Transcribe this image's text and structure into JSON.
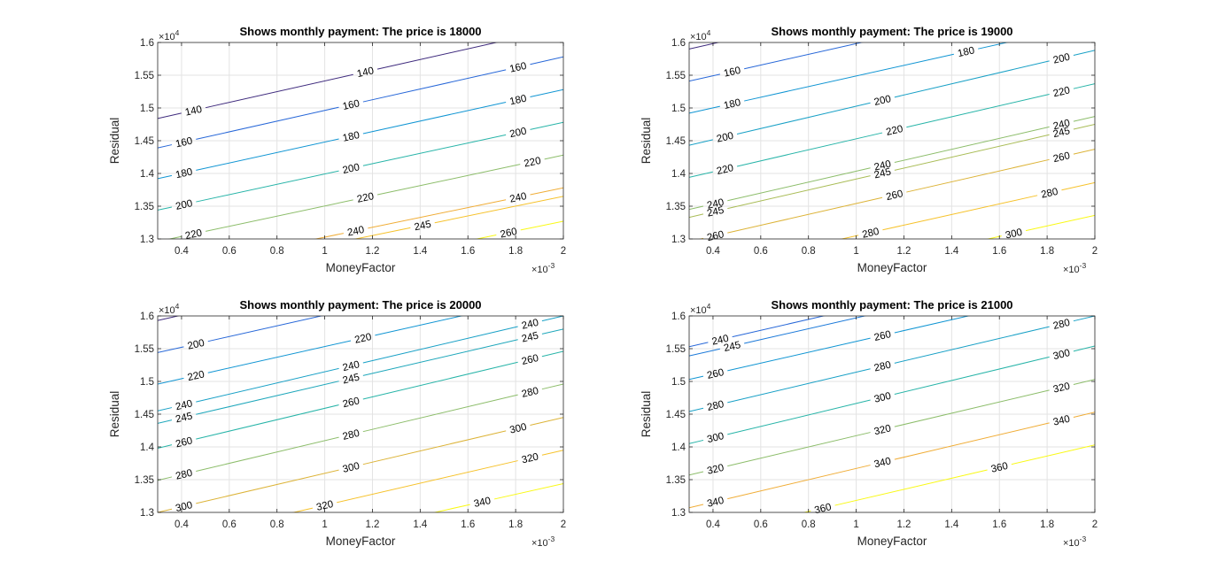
{
  "figure": {
    "type": "contour",
    "background": "#ffffff"
  },
  "chart_data": [
    {
      "type": "contour",
      "title": "Shows monthly payment: The price is 18000",
      "xlabel": "MoneyFactor",
      "ylabel": "Residual",
      "x_multiplier": "×10",
      "x_exponent": "-3",
      "y_multiplier": "×10",
      "y_exponent": "4",
      "xlim": [
        0.3,
        2.0
      ],
      "ylim": [
        1.3,
        1.6
      ],
      "xticks": [
        "0.4",
        "0.6",
        "0.8",
        "1",
        "1.2",
        "1.4",
        "1.6",
        "1.8",
        "2"
      ],
      "xtick_values": [
        0.4,
        0.6,
        0.8,
        1.0,
        1.2,
        1.4,
        1.6,
        1.8,
        2.0
      ],
      "yticks": [
        "1.3",
        "1.35",
        "1.4",
        "1.45",
        "1.5",
        "1.55",
        "1.6"
      ],
      "ytick_values": [
        1.3,
        1.35,
        1.4,
        1.45,
        1.5,
        1.55,
        1.6
      ],
      "grid": true,
      "levels": [
        {
          "value": 140,
          "label": "140",
          "color": "#3e2a7d",
          "y_at_xmin": 1.484,
          "y_at_xmax": 1.623,
          "label_x": [
            0.45,
            1.17
          ]
        },
        {
          "value": 160,
          "label": "160",
          "color": "#2767d8",
          "y_at_xmin": 1.439,
          "y_at_xmax": 1.578,
          "label_x": [
            0.41,
            1.11,
            1.81
          ]
        },
        {
          "value": 180,
          "label": "180",
          "color": "#1095d3",
          "y_at_xmin": 1.392,
          "y_at_xmax": 1.528,
          "label_x": [
            0.41,
            1.11,
            1.81
          ]
        },
        {
          "value": 200,
          "label": "200",
          "color": "#27b4a8",
          "y_at_xmin": 1.344,
          "y_at_xmax": 1.478,
          "label_x": [
            0.41,
            1.11,
            1.81
          ]
        },
        {
          "value": 220,
          "label": "220",
          "color": "#8cbd6a",
          "y_at_xmin": 1.296,
          "y_at_xmax": 1.428,
          "label_x": [
            0.45,
            1.17,
            1.87
          ]
        },
        {
          "value": 240,
          "label": "240",
          "color": "#f0ad37",
          "y_at_xmin": 1.25,
          "y_at_xmax": 1.378,
          "label_x": [
            1.13,
            1.81
          ]
        },
        {
          "value": 245,
          "label": "245",
          "color": "#f6c22b",
          "y_at_xmin": 1.238,
          "y_at_xmax": 1.365,
          "label_x": [
            1.41
          ]
        },
        {
          "value": 260,
          "label": "260",
          "color": "#f9f914",
          "y_at_xmin": 1.2,
          "y_at_xmax": 1.327,
          "label_x": [
            1.77
          ]
        }
      ]
    },
    {
      "type": "contour",
      "title": "Shows monthly payment: The price is 19000",
      "xlabel": "MoneyFactor",
      "ylabel": "Residual",
      "x_multiplier": "×10",
      "x_exponent": "-3",
      "y_multiplier": "×10",
      "y_exponent": "4",
      "xlim": [
        0.3,
        2.0
      ],
      "ylim": [
        1.3,
        1.6
      ],
      "xticks": [
        "0.4",
        "0.6",
        "0.8",
        "1",
        "1.2",
        "1.4",
        "1.6",
        "1.8",
        "2"
      ],
      "xtick_values": [
        0.4,
        0.6,
        0.8,
        1.0,
        1.2,
        1.4,
        1.6,
        1.8,
        2.0
      ],
      "yticks": [
        "1.3",
        "1.35",
        "1.4",
        "1.45",
        "1.5",
        "1.55",
        "1.6"
      ],
      "ytick_values": [
        1.3,
        1.35,
        1.4,
        1.45,
        1.5,
        1.55,
        1.6
      ],
      "grid": true,
      "levels": [
        {
          "value": 140,
          "label": "140",
          "color": "#3e2a7d",
          "y_at_xmin": 1.59,
          "y_at_xmax": 1.73,
          "label_x": []
        },
        {
          "value": 160,
          "label": "160",
          "color": "#2767d8",
          "y_at_xmin": 1.541,
          "y_at_xmax": 1.68,
          "label_x": [
            0.48
          ]
        },
        {
          "value": 180,
          "label": "180",
          "color": "#1095d3",
          "y_at_xmin": 1.492,
          "y_at_xmax": 1.63,
          "label_x": [
            0.48,
            1.46
          ]
        },
        {
          "value": 200,
          "label": "200",
          "color": "#18a0c6",
          "y_at_xmin": 1.443,
          "y_at_xmax": 1.588,
          "label_x": [
            0.45,
            1.11,
            1.86
          ]
        },
        {
          "value": 220,
          "label": "220",
          "color": "#27b4a8",
          "y_at_xmin": 1.394,
          "y_at_xmax": 1.537,
          "label_x": [
            0.45,
            1.16,
            1.86
          ]
        },
        {
          "value": 240,
          "label": "240",
          "color": "#8cbd6a",
          "y_at_xmin": 1.345,
          "y_at_xmax": 1.487,
          "label_x": [
            0.41,
            1.11,
            1.86
          ]
        },
        {
          "value": 245,
          "label": "245",
          "color": "#a9bc56",
          "y_at_xmin": 1.333,
          "y_at_xmax": 1.475,
          "label_x": [
            0.41,
            1.11,
            1.86
          ]
        },
        {
          "value": 260,
          "label": "260",
          "color": "#dcb337",
          "y_at_xmin": 1.296,
          "y_at_xmax": 1.437,
          "label_x": [
            0.41,
            1.16,
            1.86
          ]
        },
        {
          "value": 280,
          "label": "280",
          "color": "#f6c22b",
          "y_at_xmin": 1.248,
          "y_at_xmax": 1.386,
          "label_x": [
            1.06,
            1.81
          ]
        },
        {
          "value": 300,
          "label": "300",
          "color": "#f9f914",
          "y_at_xmin": 1.199,
          "y_at_xmax": 1.336,
          "label_x": [
            1.66
          ]
        }
      ]
    },
    {
      "type": "contour",
      "title": "Shows monthly payment: The price is 20000",
      "xlabel": "MoneyFactor",
      "ylabel": "Residual",
      "x_multiplier": "×10",
      "x_exponent": "-3",
      "y_multiplier": "×10",
      "y_exponent": "4",
      "xlim": [
        0.3,
        2.0
      ],
      "ylim": [
        1.3,
        1.6
      ],
      "xticks": [
        "0.4",
        "0.6",
        "0.8",
        "1",
        "1.2",
        "1.4",
        "1.6",
        "1.8",
        "2"
      ],
      "xtick_values": [
        0.4,
        0.6,
        0.8,
        1.0,
        1.2,
        1.4,
        1.6,
        1.8,
        2.0
      ],
      "yticks": [
        "1.3",
        "1.35",
        "1.4",
        "1.45",
        "1.5",
        "1.55",
        "1.6"
      ],
      "ytick_values": [
        1.3,
        1.35,
        1.4,
        1.45,
        1.5,
        1.55,
        1.6
      ],
      "grid": true,
      "levels": [
        {
          "value": 180,
          "label": "180",
          "color": "#3e2a7d",
          "y_at_xmin": 1.593,
          "y_at_xmax": 1.733,
          "label_x": []
        },
        {
          "value": 200,
          "label": "200",
          "color": "#2767d8",
          "y_at_xmin": 1.544,
          "y_at_xmax": 1.683,
          "label_x": [
            0.46
          ]
        },
        {
          "value": 220,
          "label": "220",
          "color": "#1095d3",
          "y_at_xmin": 1.496,
          "y_at_xmax": 1.635,
          "label_x": [
            0.46,
            1.16
          ]
        },
        {
          "value": 240,
          "label": "240",
          "color": "#18a0c6",
          "y_at_xmin": 1.455,
          "y_at_xmax": 1.6,
          "label_x": [
            0.41,
            1.11,
            1.86
          ]
        },
        {
          "value": 245,
          "label": "245",
          "color": "#1ea7bb",
          "y_at_xmin": 1.436,
          "y_at_xmax": 1.58,
          "label_x": [
            0.41,
            1.11,
            1.86
          ]
        },
        {
          "value": 260,
          "label": "260",
          "color": "#27b4a8",
          "y_at_xmin": 1.398,
          "y_at_xmax": 1.546,
          "label_x": [
            0.41,
            1.11,
            1.86
          ]
        },
        {
          "value": 280,
          "label": "280",
          "color": "#8cbd6a",
          "y_at_xmin": 1.349,
          "y_at_xmax": 1.496,
          "label_x": [
            0.41,
            1.11,
            1.86
          ]
        },
        {
          "value": 300,
          "label": "300",
          "color": "#dcb337",
          "y_at_xmin": 1.3,
          "y_at_xmax": 1.445,
          "label_x": [
            0.41,
            1.11,
            1.81
          ]
        },
        {
          "value": 320,
          "label": "320",
          "color": "#f6c22b",
          "y_at_xmin": 1.252,
          "y_at_xmax": 1.395,
          "label_x": [
            1.0,
            1.86
          ]
        },
        {
          "value": 340,
          "label": "340",
          "color": "#f9f914",
          "y_at_xmin": 1.205,
          "y_at_xmax": 1.344,
          "label_x": [
            1.66
          ]
        }
      ]
    },
    {
      "type": "contour",
      "title": "Shows monthly payment: The price is 21000",
      "xlabel": "MoneyFactor",
      "ylabel": "Residual",
      "x_multiplier": "×10",
      "x_exponent": "-3",
      "y_multiplier": "×10",
      "y_exponent": "4",
      "xlim": [
        0.3,
        2.0
      ],
      "ylim": [
        1.3,
        1.6
      ],
      "xticks": [
        "0.4",
        "0.6",
        "0.8",
        "1",
        "1.2",
        "1.4",
        "1.6",
        "1.8",
        "2"
      ],
      "xtick_values": [
        0.4,
        0.6,
        0.8,
        1.0,
        1.2,
        1.4,
        1.6,
        1.8,
        2.0
      ],
      "yticks": [
        "1.3",
        "1.35",
        "1.4",
        "1.45",
        "1.5",
        "1.55",
        "1.6"
      ],
      "ytick_values": [
        1.3,
        1.35,
        1.4,
        1.45,
        1.5,
        1.55,
        1.6
      ],
      "grid": true,
      "levels": [
        {
          "value": 240,
          "label": "240",
          "color": "#2767d8",
          "y_at_xmin": 1.553,
          "y_at_xmax": 1.695,
          "label_x": [
            0.43
          ]
        },
        {
          "value": 245,
          "label": "245",
          "color": "#1b79d9",
          "y_at_xmin": 1.539,
          "y_at_xmax": 1.68,
          "label_x": [
            0.48
          ]
        },
        {
          "value": 260,
          "label": "260",
          "color": "#1095d3",
          "y_at_xmin": 1.503,
          "y_at_xmax": 1.644,
          "label_x": [
            0.41,
            1.11
          ]
        },
        {
          "value": 280,
          "label": "280",
          "color": "#18a0c6",
          "y_at_xmin": 1.454,
          "y_at_xmax": 1.6,
          "label_x": [
            0.41,
            1.11,
            1.86
          ]
        },
        {
          "value": 300,
          "label": "300",
          "color": "#27b4a8",
          "y_at_xmin": 1.405,
          "y_at_xmax": 1.554,
          "label_x": [
            0.41,
            1.11,
            1.86
          ]
        },
        {
          "value": 320,
          "label": "320",
          "color": "#8cbd6a",
          "y_at_xmin": 1.357,
          "y_at_xmax": 1.503,
          "label_x": [
            0.41,
            1.11,
            1.86
          ]
        },
        {
          "value": 340,
          "label": "340",
          "color": "#f0ad37",
          "y_at_xmin": 1.307,
          "y_at_xmax": 1.453,
          "label_x": [
            0.41,
            1.11,
            1.86
          ]
        },
        {
          "value": 360,
          "label": "360",
          "color": "#f9f914",
          "y_at_xmin": 1.259,
          "y_at_xmax": 1.403,
          "label_x": [
            0.86,
            1.6
          ]
        }
      ]
    }
  ]
}
